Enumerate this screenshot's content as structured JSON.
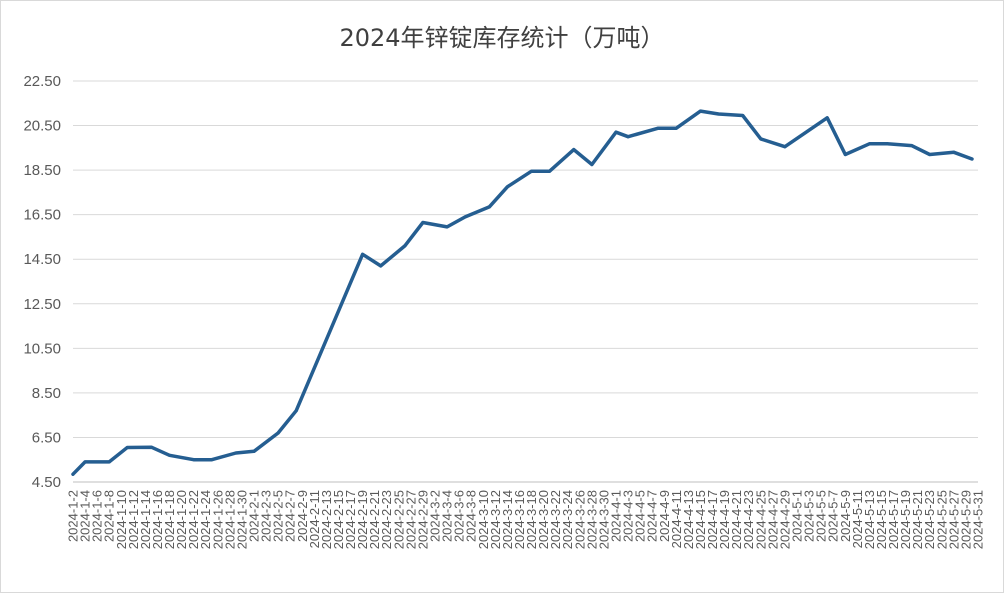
{
  "chart_data": {
    "type": "line",
    "title": "2024年锌锭库存统计（万吨）",
    "xlabel": "",
    "ylabel": "",
    "ylim": [
      4.5,
      22.5
    ],
    "yticks": [
      "4.50",
      "6.50",
      "8.50",
      "10.50",
      "12.50",
      "14.50",
      "16.50",
      "18.50",
      "20.50",
      "22.50"
    ],
    "grid": true,
    "legend": "none",
    "line_color": "#255e91",
    "categories": [
      "2024-1-2",
      "2024-1-4",
      "2024-1-6",
      "2024-1-8",
      "2024-1-10",
      "2024-1-12",
      "2024-1-14",
      "2024-1-16",
      "2024-1-18",
      "2024-1-20",
      "2024-1-22",
      "2024-1-24",
      "2024-1-26",
      "2024-1-28",
      "2024-1-30",
      "2024-2-1",
      "2024-2-3",
      "2024-2-5",
      "2024-2-7",
      "2024-2-9",
      "2024-2-11",
      "2024-2-13",
      "2024-2-15",
      "2024-2-17",
      "2024-2-19",
      "2024-2-21",
      "2024-2-23",
      "2024-2-25",
      "2024-2-27",
      "2024-2-29",
      "2024-3-2",
      "2024-3-4",
      "2024-3-6",
      "2024-3-8",
      "2024-3-10",
      "2024-3-12",
      "2024-3-14",
      "2024-3-16",
      "2024-3-18",
      "2024-3-20",
      "2024-3-22",
      "2024-3-24",
      "2024-3-26",
      "2024-3-28",
      "2024-3-30",
      "2024-4-1",
      "2024-4-3",
      "2024-4-5",
      "2024-4-7",
      "2024-4-9",
      "2024-4-11",
      "2024-4-13",
      "2024-4-15",
      "2024-4-17",
      "2024-4-19",
      "2024-4-21",
      "2024-4-23",
      "2024-4-25",
      "2024-4-27",
      "2024-4-29",
      "2024-5-1",
      "2024-5-3",
      "2024-5-5",
      "2024-5-7",
      "2024-5-9",
      "2024-5-11",
      "2024-5-13",
      "2024-5-15",
      "2024-5-17",
      "2024-5-19",
      "2024-5-21",
      "2024-5-23",
      "2024-5-25",
      "2024-5-27",
      "2024-5-29",
      "2024-5-31"
    ],
    "series": [
      {
        "points": [
          {
            "x": "2024-1-2",
            "y": 4.85
          },
          {
            "x": "2024-1-4",
            "y": 5.4
          },
          {
            "x": "2024-1-8",
            "y": 5.4
          },
          {
            "x": "2024-1-11",
            "y": 6.05
          },
          {
            "x": "2024-1-15",
            "y": 6.06
          },
          {
            "x": "2024-1-18",
            "y": 5.7
          },
          {
            "x": "2024-1-22",
            "y": 5.5
          },
          {
            "x": "2024-1-25",
            "y": 5.5
          },
          {
            "x": "2024-1-29",
            "y": 5.8
          },
          {
            "x": "2024-2-1",
            "y": 5.88
          },
          {
            "x": "2024-2-5",
            "y": 6.7
          },
          {
            "x": "2024-2-8",
            "y": 7.7
          },
          {
            "x": "2024-2-19",
            "y": 14.72
          },
          {
            "x": "2024-2-22",
            "y": 14.2
          },
          {
            "x": "2024-2-26",
            "y": 15.1
          },
          {
            "x": "2024-2-29",
            "y": 16.15
          },
          {
            "x": "2024-3-4",
            "y": 15.95
          },
          {
            "x": "2024-3-7",
            "y": 16.4
          },
          {
            "x": "2024-3-11",
            "y": 16.85
          },
          {
            "x": "2024-3-14",
            "y": 17.75
          },
          {
            "x": "2024-3-18",
            "y": 18.45
          },
          {
            "x": "2024-3-21",
            "y": 18.45
          },
          {
            "x": "2024-3-25",
            "y": 19.42
          },
          {
            "x": "2024-3-28",
            "y": 18.75
          },
          {
            "x": "2024-4-1",
            "y": 20.2
          },
          {
            "x": "2024-4-3",
            "y": 20.0
          },
          {
            "x": "2024-4-8",
            "y": 20.38
          },
          {
            "x": "2024-4-11",
            "y": 20.38
          },
          {
            "x": "2024-4-15",
            "y": 21.15
          },
          {
            "x": "2024-4-18",
            "y": 21.02
          },
          {
            "x": "2024-4-22",
            "y": 20.95
          },
          {
            "x": "2024-4-25",
            "y": 19.9
          },
          {
            "x": "2024-4-29",
            "y": 19.55
          },
          {
            "x": "2024-5-6",
            "y": 20.85
          },
          {
            "x": "2024-5-9",
            "y": 19.2
          },
          {
            "x": "2024-5-13",
            "y": 19.68
          },
          {
            "x": "2024-5-16",
            "y": 19.68
          },
          {
            "x": "2024-5-20",
            "y": 19.6
          },
          {
            "x": "2024-5-23",
            "y": 19.2
          },
          {
            "x": "2024-5-27",
            "y": 19.3
          },
          {
            "x": "2024-5-30",
            "y": 19.0
          }
        ]
      }
    ]
  }
}
